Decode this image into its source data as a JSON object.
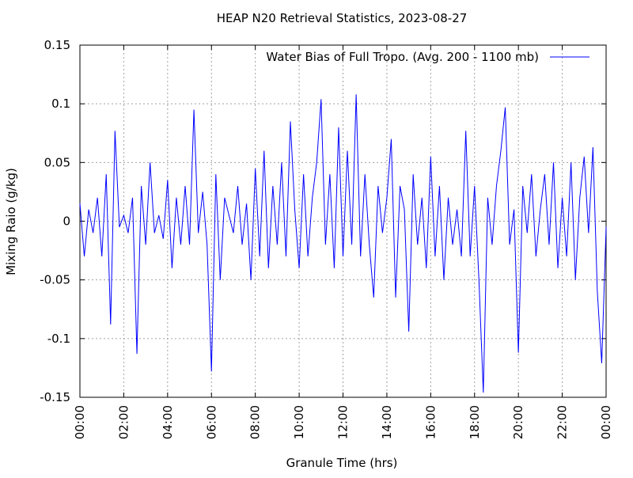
{
  "chart_data": {
    "type": "line",
    "title": "HEAP N20 Retrieval Statistics, 2023-08-27",
    "xlabel": "Granule Time (hrs)",
    "ylabel": "Mixing Raio (g/kg)",
    "x": [
      0,
      0.2,
      0.4,
      0.6,
      0.8,
      1,
      1.2,
      1.4,
      1.6,
      1.8,
      2,
      2.2,
      2.4,
      2.6,
      2.8,
      3,
      3.2,
      3.4,
      3.6,
      3.8,
      4,
      4.2,
      4.4,
      4.6,
      4.8,
      5,
      5.2,
      5.4,
      5.6,
      5.8,
      6,
      6.2,
      6.4,
      6.6,
      6.8,
      7,
      7.2,
      7.4,
      7.6,
      7.8,
      8,
      8.2,
      8.4,
      8.6,
      8.8,
      9,
      9.2,
      9.4,
      9.6,
      9.8,
      10,
      10.2,
      10.4,
      10.6,
      10.8,
      11,
      11.2,
      11.4,
      11.6,
      11.8,
      12,
      12.2,
      12.4,
      12.6,
      12.8,
      13,
      13.2,
      13.4,
      13.6,
      13.8,
      14,
      14.2,
      14.4,
      14.6,
      14.8,
      15,
      15.2,
      15.4,
      15.6,
      15.8,
      16,
      16.2,
      16.4,
      16.6,
      16.8,
      17,
      17.2,
      17.4,
      17.6,
      17.8,
      18,
      18.2,
      18.4,
      18.6,
      18.8,
      19,
      19.2,
      19.4,
      19.6,
      19.8,
      20,
      20.2,
      20.4,
      20.6,
      20.8,
      21,
      21.2,
      21.4,
      21.6,
      21.8,
      22,
      22.2,
      22.4,
      22.6,
      22.8,
      23,
      23.2,
      23.4,
      23.6,
      23.8,
      24
    ],
    "series": [
      {
        "name": "Water Bias of Full Tropo. (Avg. 200 - 1100 mb)",
        "color": "#0000ff",
        "values": [
          0.015,
          -0.03,
          0.01,
          -0.01,
          0.02,
          -0.03,
          0.04,
          -0.088,
          0.077,
          -0.005,
          0.005,
          -0.01,
          0.02,
          -0.113,
          0.03,
          -0.02,
          0.05,
          -0.01,
          0.005,
          -0.015,
          0.035,
          -0.04,
          0.02,
          -0.02,
          0.03,
          -0.02,
          0.095,
          -0.01,
          0.025,
          -0.02,
          -0.128,
          0.04,
          -0.05,
          0.02,
          0.005,
          -0.01,
          0.03,
          -0.02,
          0.015,
          -0.05,
          0.045,
          -0.03,
          0.06,
          -0.04,
          0.03,
          -0.02,
          0.05,
          -0.03,
          0.085,
          0.01,
          -0.04,
          0.04,
          -0.03,
          0.02,
          0.05,
          0.104,
          -0.02,
          0.04,
          -0.04,
          0.08,
          -0.03,
          0.06,
          -0.02,
          0.108,
          -0.03,
          0.04,
          -0.02,
          -0.065,
          0.03,
          -0.01,
          0.02,
          0.07,
          -0.065,
          0.03,
          0.01,
          -0.094,
          0.04,
          -0.02,
          0.02,
          -0.04,
          0.055,
          -0.03,
          0.03,
          -0.05,
          0.02,
          -0.02,
          0.01,
          -0.03,
          0.077,
          -0.03,
          0.03,
          -0.05,
          -0.146,
          0.02,
          -0.02,
          0.03,
          0.06,
          0.097,
          -0.02,
          0.01,
          -0.112,
          0.03,
          -0.01,
          0.04,
          -0.03,
          0.01,
          0.04,
          -0.02,
          0.05,
          -0.04,
          0.02,
          -0.03,
          0.05,
          -0.05,
          0.02,
          0.055,
          -0.01,
          0.063,
          -0.06,
          -0.121,
          -0.005
        ]
      }
    ],
    "xlim": [
      0,
      24
    ],
    "xticks": [
      {
        "value": 0,
        "label": "00:00"
      },
      {
        "value": 2,
        "label": "02:00"
      },
      {
        "value": 4,
        "label": "04:00"
      },
      {
        "value": 6,
        "label": "06:00"
      },
      {
        "value": 8,
        "label": "08:00"
      },
      {
        "value": 10,
        "label": "10:00"
      },
      {
        "value": 12,
        "label": "12:00"
      },
      {
        "value": 14,
        "label": "14:00"
      },
      {
        "value": 16,
        "label": "16:00"
      },
      {
        "value": 18,
        "label": "18:00"
      },
      {
        "value": 20,
        "label": "20:00"
      },
      {
        "value": 22,
        "label": "22:00"
      },
      {
        "value": 24,
        "label": "00:00"
      }
    ],
    "ylim": [
      -0.15,
      0.15
    ],
    "yticks": [
      -0.15,
      -0.1,
      -0.05,
      0,
      0.05,
      0.1,
      0.15
    ],
    "grid": true,
    "legend": "top-right"
  }
}
